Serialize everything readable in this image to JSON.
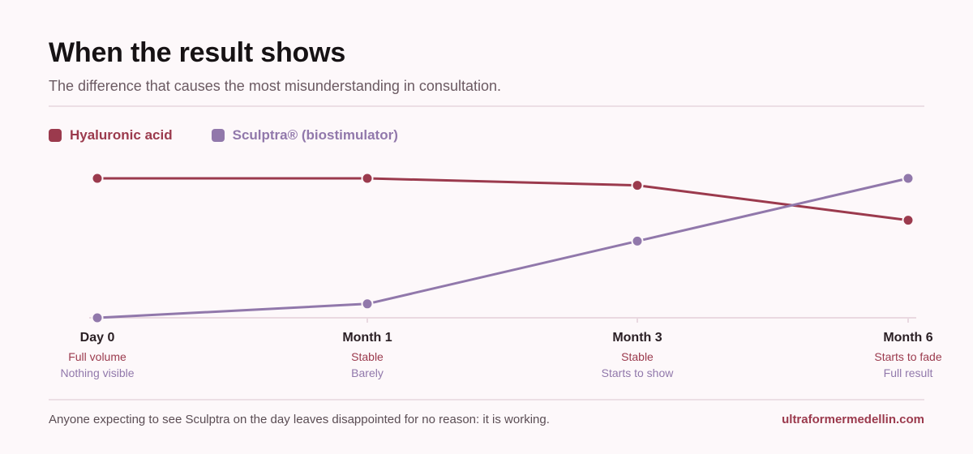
{
  "header": {
    "title": "When the result shows",
    "subtitle": "The difference that causes the most misunderstanding in consultation."
  },
  "colors": {
    "hyaluronic": "#9b3a4d",
    "sculptra": "#9178ab",
    "axis": "#ead9e1",
    "tick_label": "#2a1f24"
  },
  "chart_data": {
    "type": "line",
    "categories": [
      "Day 0",
      "Month 1",
      "Month 3",
      "Month 6"
    ],
    "ylim": [
      0,
      100
    ],
    "grid": false,
    "legend_placement": "top-left",
    "series": [
      {
        "name": "Hyaluronic acid",
        "color": "#9b3a4d",
        "values": [
          100,
          100,
          95,
          70
        ],
        "annotations": [
          "Full volume",
          "Stable",
          "Stable",
          "Starts to fade"
        ]
      },
      {
        "name": "Sculptra® (biostimulator)",
        "color": "#9178ab",
        "values": [
          0,
          10,
          55,
          100
        ],
        "annotations": [
          "Nothing visible",
          "Barely",
          "Starts to show",
          "Full result"
        ]
      }
    ]
  },
  "footer": {
    "note": "Anyone expecting to see Sculptra on the day leaves disappointed for no reason: it is working.",
    "brand": "ultraformermedellin.com"
  }
}
